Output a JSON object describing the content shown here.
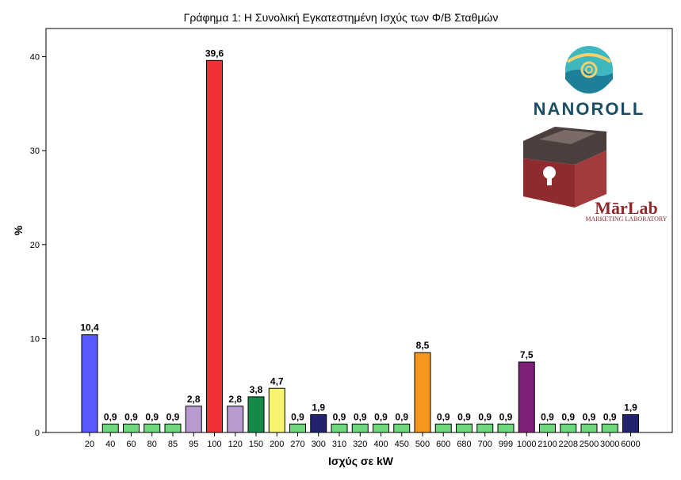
{
  "chart_data": {
    "type": "bar",
    "title": "Γράφημα 1: Η Συνολική Εγκατεστημένη Ισχύς των Φ/Β Σταθμών",
    "xlabel": "Ισχύς σε kW",
    "ylabel": "%",
    "ylim": [
      0,
      43
    ],
    "yticks": [
      0,
      10,
      20,
      30,
      40
    ],
    "grid": false,
    "categories": [
      "20",
      "40",
      "60",
      "80",
      "85",
      "95",
      "100",
      "120",
      "150",
      "200",
      "270",
      "300",
      "310",
      "320",
      "400",
      "450",
      "500",
      "600",
      "680",
      "700",
      "999",
      "1000",
      "2100",
      "2208",
      "2500",
      "3000",
      "6000"
    ],
    "values": [
      10.4,
      0.9,
      0.9,
      0.9,
      0.9,
      2.8,
      39.6,
      2.8,
      3.8,
      4.7,
      0.9,
      1.9,
      0.9,
      0.9,
      0.9,
      0.9,
      8.5,
      0.9,
      0.9,
      0.9,
      0.9,
      7.5,
      0.9,
      0.9,
      0.9,
      0.9,
      1.9
    ],
    "labels": [
      "10,4",
      "0,9",
      "0,9",
      "0,9",
      "0,9",
      "2,8",
      "39,6",
      "2,8",
      "3,8",
      "4,7",
      "0,9",
      "1,9",
      "0,9",
      "0,9",
      "0,9",
      "0,9",
      "8,5",
      "0,9",
      "0,9",
      "0,9",
      "0,9",
      "7,5",
      "0,9",
      "0,9",
      "0,9",
      "0,9",
      "1,9"
    ],
    "colors": [
      "#5a5aff",
      "#6fd87e",
      "#6fd87e",
      "#6fd87e",
      "#6fd87e",
      "#b79bd0",
      "#f03236",
      "#b79bd0",
      "#138a48",
      "#f7f56d",
      "#6fd87e",
      "#23226e",
      "#6fd87e",
      "#6fd87e",
      "#6fd87e",
      "#6fd87e",
      "#f5961d",
      "#6fd87e",
      "#6fd87e",
      "#6fd87e",
      "#6fd87e",
      "#7e1f78",
      "#6fd87e",
      "#6fd87e",
      "#6fd87e",
      "#6fd87e",
      "#23226e"
    ]
  },
  "logos": {
    "nanoroll": "NANOROLL",
    "marlab_main": "MārLab",
    "marlab_sub": "MARKETING LABORATORY"
  }
}
